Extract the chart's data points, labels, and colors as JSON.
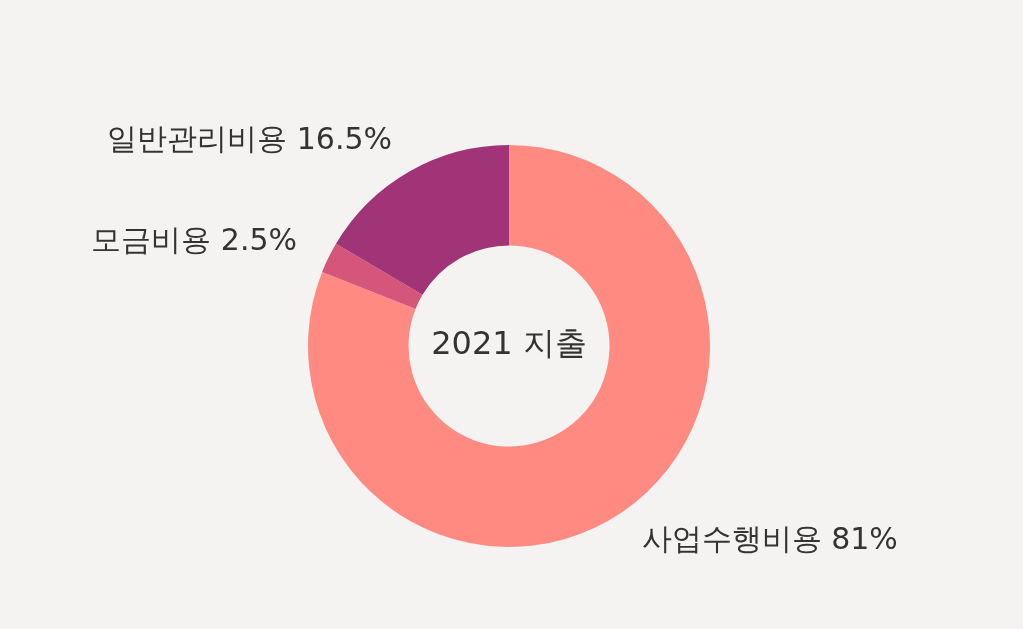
{
  "chart_data": {
    "type": "donut",
    "title": "2021 지출",
    "categories": [
      "사업수행비용",
      "모금비용",
      "일반관리비용"
    ],
    "values": [
      81,
      2.5,
      16.5
    ],
    "colors": [
      "#ff8a82",
      "#d6557a",
      "#a03476"
    ],
    "value_labels": [
      "81%",
      "2.5%",
      "16.5%"
    ],
    "legend": false
  }
}
